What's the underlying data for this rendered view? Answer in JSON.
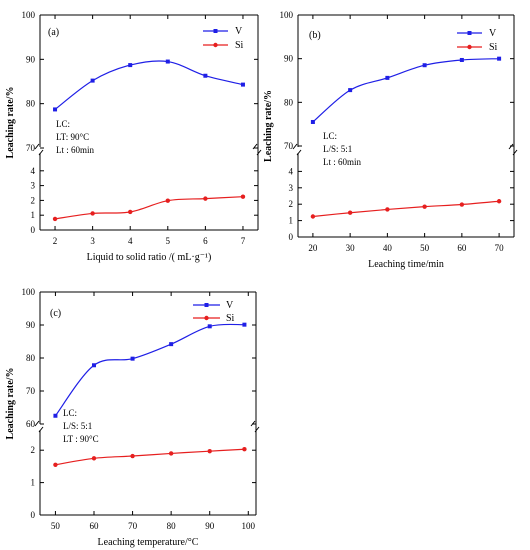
{
  "chart_data": [
    {
      "type": "line",
      "panel_label": "(a)",
      "xlabel": "Liquid to solid ratio /( mL·g⁻¹)",
      "ylabel": "Leaching rate/%",
      "x_ticks": [
        "2",
        "3",
        "4",
        "5",
        "6",
        "7"
      ],
      "y_upper_ticks": [
        "70",
        "80",
        "90",
        "100"
      ],
      "y_lower_ticks": [
        "0",
        "1",
        "2",
        "3",
        "4"
      ],
      "legend_position": "top-right",
      "annotation": [
        "LC:",
        "LT: 90°C",
        "Lt : 60min"
      ],
      "series": [
        {
          "name": "V",
          "color": "#1f1fe6",
          "marker": "square",
          "x": [
            2,
            3,
            4,
            5,
            6,
            7
          ],
          "y": [
            78.7,
            85.2,
            88.7,
            89.5,
            86.3,
            84.3
          ]
        },
        {
          "name": "Si",
          "color": "#e61f1f",
          "marker": "circle",
          "x": [
            2,
            3,
            4,
            5,
            6,
            7
          ],
          "y": [
            0.75,
            1.12,
            1.22,
            1.98,
            2.12,
            2.25
          ]
        }
      ]
    },
    {
      "type": "line",
      "panel_label": "(b)",
      "xlabel": "Leaching time/min",
      "ylabel": "Leaching rate/%",
      "x_ticks": [
        "20",
        "30",
        "40",
        "50",
        "60",
        "70"
      ],
      "y_upper_ticks": [
        "70",
        "80",
        "90",
        "100"
      ],
      "y_lower_ticks": [
        "0",
        "1",
        "2",
        "3",
        "4"
      ],
      "legend_position": "top-right",
      "annotation": [
        "LC:",
        "L/S: 5:1",
        "Lt : 60min"
      ],
      "series": [
        {
          "name": "V",
          "color": "#1f1fe6",
          "marker": "square",
          "x": [
            20,
            30,
            40,
            50,
            60,
            70
          ],
          "y": [
            75.5,
            82.8,
            85.6,
            88.5,
            89.7,
            90.0
          ]
        },
        {
          "name": "Si",
          "color": "#e61f1f",
          "marker": "circle",
          "x": [
            20,
            30,
            40,
            50,
            60,
            70
          ],
          "y": [
            1.25,
            1.48,
            1.68,
            1.85,
            1.98,
            2.18
          ]
        }
      ]
    },
    {
      "type": "line",
      "panel_label": "(c)",
      "xlabel": "Leaching temperature/°C",
      "ylabel": "Leaching rate/%",
      "x_ticks": [
        "50",
        "60",
        "70",
        "80",
        "90",
        "100"
      ],
      "y_upper_ticks": [
        "60",
        "70",
        "80",
        "90",
        "100"
      ],
      "y_lower_ticks": [
        "0",
        "1",
        "2"
      ],
      "legend_position": "top-right",
      "annotation": [
        "LC:",
        "L/S: 5:1",
        "LT : 90°C"
      ],
      "series": [
        {
          "name": "V",
          "color": "#1f1fe6",
          "marker": "square",
          "x": [
            50,
            60,
            70,
            80,
            90,
            99
          ],
          "y": [
            62.5,
            77.8,
            79.8,
            84.2,
            89.6,
            90.1
          ]
        },
        {
          "name": "Si",
          "color": "#e61f1f",
          "marker": "circle",
          "x": [
            50,
            60,
            70,
            80,
            90,
            99
          ],
          "y": [
            1.55,
            1.75,
            1.82,
            1.9,
            1.97,
            2.03
          ]
        }
      ]
    }
  ]
}
